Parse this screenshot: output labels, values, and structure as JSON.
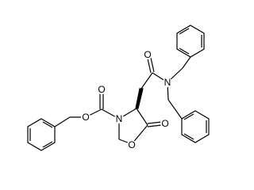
{
  "atoms": [
    {
      "label": "O"
    },
    {
      "label": "O"
    },
    {
      "label": "N"
    },
    {
      "label": "O"
    },
    {
      "label": "O"
    },
    {
      "label": "O"
    },
    {
      "label": "N"
    }
  ]
}
